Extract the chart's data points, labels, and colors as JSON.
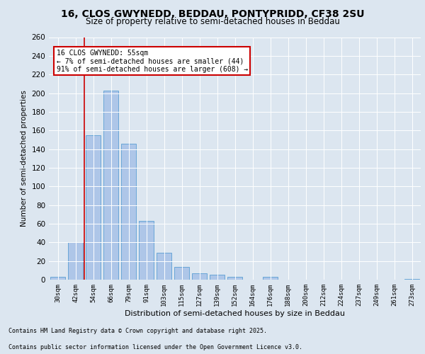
{
  "title_line1": "16, CLOS GWYNEDD, BEDDAU, PONTYPRIDD, CF38 2SU",
  "title_line2": "Size of property relative to semi-detached houses in Beddau",
  "xlabel": "Distribution of semi-detached houses by size in Beddau",
  "ylabel": "Number of semi-detached properties",
  "categories": [
    "30sqm",
    "42sqm",
    "54sqm",
    "66sqm",
    "79sqm",
    "91sqm",
    "103sqm",
    "115sqm",
    "127sqm",
    "139sqm",
    "152sqm",
    "164sqm",
    "176sqm",
    "188sqm",
    "200sqm",
    "212sqm",
    "224sqm",
    "237sqm",
    "249sqm",
    "261sqm",
    "273sqm"
  ],
  "values": [
    3,
    40,
    155,
    203,
    146,
    63,
    29,
    14,
    7,
    5,
    3,
    0,
    3,
    0,
    0,
    0,
    0,
    0,
    0,
    0,
    1
  ],
  "bar_color": "#aec6e8",
  "bar_edge_color": "#5a9fd4",
  "vline_x": 2.0,
  "vline_color": "#cc0000",
  "annotation_title": "16 CLOS GWYNEDD: 55sqm",
  "annotation_line1": "← 7% of semi-detached houses are smaller (44)",
  "annotation_line2": "91% of semi-detached houses are larger (608) →",
  "annotation_box_color": "#cc0000",
  "ylim": [
    0,
    260
  ],
  "yticks": [
    0,
    20,
    40,
    60,
    80,
    100,
    120,
    140,
    160,
    180,
    200,
    220,
    240,
    260
  ],
  "footer_line1": "Contains HM Land Registry data © Crown copyright and database right 2025.",
  "footer_line2": "Contains public sector information licensed under the Open Government Licence v3.0.",
  "bg_color": "#dce6f0",
  "plot_bg_color": "#dce6f0",
  "grid_color": "#ffffff",
  "title1_fontsize": 10,
  "title2_fontsize": 8.5,
  "ylabel_fontsize": 7.5,
  "xlabel_fontsize": 8,
  "ytick_fontsize": 7.5,
  "xtick_fontsize": 6.5,
  "footer_fontsize": 6,
  "ann_fontsize": 7
}
